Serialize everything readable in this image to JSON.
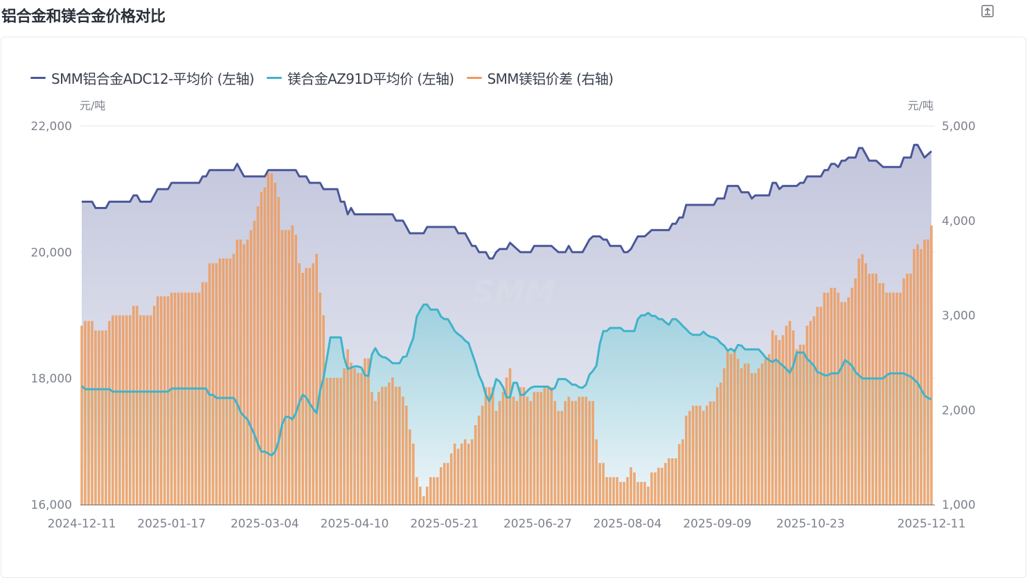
{
  "title": "铝合金和镁合金价格对比",
  "colors": {
    "adc12": "#4a5799",
    "az91d": "#3fb3c9",
    "spread": "#ef9a5a"
  },
  "legend": [
    {
      "label": "SMM铝合金ADC12-平均价 (左轴)",
      "color": "#4a5799"
    },
    {
      "label": "镁合金AZ91D平均价 (左轴)",
      "color": "#3fb3c9"
    },
    {
      "label": "SMM镁铝价差 (右轴)",
      "color": "#ef9a5a"
    }
  ],
  "chart_data": {
    "type": "bar+line+area",
    "title": "铝合金和镁合金价格对比",
    "watermark": "SMM",
    "y_left": {
      "unit": "元/吨",
      "range": [
        16000,
        22000
      ],
      "ticks": [
        "22,000",
        "20,000",
        "18,000",
        "16,000"
      ],
      "tick_values": [
        22000,
        20000,
        18000,
        16000
      ]
    },
    "y_right": {
      "unit": "元/吨",
      "range": [
        1000,
        5000
      ],
      "ticks": [
        "5,000",
        "4,000",
        "3,000",
        "2,000",
        "1,000"
      ],
      "tick_values": [
        5000,
        4000,
        3000,
        2000,
        1000
      ]
    },
    "grid": true,
    "legend_position": "top-left",
    "x_labels": [
      {
        "label": "2024-12-11",
        "index": 0
      },
      {
        "label": "2025-01-17",
        "index": 26
      },
      {
        "label": "2025-03-04",
        "index": 53
      },
      {
        "label": "2025-04-10",
        "index": 79
      },
      {
        "label": "2025-05-21",
        "index": 105
      },
      {
        "label": "2025-06-27",
        "index": 132
      },
      {
        "label": "2025-08-04",
        "index": 158
      },
      {
        "label": "2025-09-09",
        "index": 184
      },
      {
        "label": "2025-10-23",
        "index": 211
      },
      {
        "label": "2025-12-11",
        "index": 246
      }
    ],
    "series": [
      {
        "name": "SMM铝合金ADC12-平均价 (左轴)",
        "type": "area-line",
        "axis": "left",
        "values": [
          20800,
          20800,
          20800,
          20800,
          20700,
          20700,
          20700,
          20700,
          20800,
          20800,
          20800,
          20800,
          20800,
          20800,
          20800,
          20900,
          20900,
          20800,
          20800,
          20800,
          20800,
          20900,
          21000,
          21000,
          21000,
          21000,
          21100,
          21100,
          21100,
          21100,
          21100,
          21100,
          21100,
          21100,
          21100,
          21200,
          21200,
          21300,
          21300,
          21300,
          21300,
          21300,
          21300,
          21300,
          21300,
          21400,
          21300,
          21200,
          21200,
          21200,
          21200,
          21200,
          21200,
          21200,
          21300,
          21300,
          21300,
          21300,
          21300,
          21300,
          21300,
          21300,
          21300,
          21200,
          21200,
          21200,
          21100,
          21100,
          21100,
          21100,
          21000,
          21000,
          21000,
          21000,
          21000,
          20800,
          20800,
          20600,
          20700,
          20600,
          20600,
          20600,
          20600,
          20600,
          20600,
          20600,
          20600,
          20600,
          20600,
          20600,
          20600,
          20500,
          20500,
          20500,
          20400,
          20300,
          20300,
          20300,
          20300,
          20300,
          20400,
          20400,
          20400,
          20400,
          20400,
          20400,
          20400,
          20400,
          20400,
          20300,
          20300,
          20300,
          20200,
          20100,
          20100,
          20000,
          20000,
          20000,
          19900,
          19900,
          20000,
          20050,
          20050,
          20050,
          20150,
          20100,
          20050,
          20000,
          20000,
          20000,
          20000,
          20100,
          20100,
          20100,
          20100,
          20100,
          20100,
          20050,
          20000,
          20000,
          20000,
          20100,
          20000,
          20000,
          20000,
          20000,
          20100,
          20200,
          20250,
          20250,
          20250,
          20200,
          20200,
          20100,
          20100,
          20100,
          20100,
          20000,
          20000,
          20050,
          20150,
          20250,
          20250,
          20250,
          20300,
          20350,
          20350,
          20350,
          20350,
          20350,
          20350,
          20450,
          20450,
          20550,
          20550,
          20750,
          20750,
          20750,
          20750,
          20750,
          20750,
          20750,
          20750,
          20750,
          20850,
          20850,
          20850,
          21050,
          21050,
          21050,
          21050,
          20950,
          20950,
          20950,
          20850,
          20900,
          20900,
          20900,
          20900,
          20900,
          21100,
          21100,
          21000,
          21050,
          21050,
          21050,
          21050,
          21050,
          21100,
          21100,
          21200,
          21200,
          21200,
          21200,
          21200,
          21300,
          21300,
          21400,
          21400,
          21350,
          21450,
          21450,
          21500,
          21500,
          21500,
          21650,
          21650,
          21550,
          21450,
          21450,
          21450,
          21400,
          21350,
          21350,
          21350,
          21350,
          21350,
          21350,
          21500,
          21500,
          21500,
          21700,
          21700,
          21600,
          21500,
          21550,
          21600
        ]
      },
      {
        "name": "镁合金AZ91D平均价 (左轴)",
        "type": "area-line",
        "axis": "left",
        "values": [
          17880,
          17830,
          17830,
          17830,
          17830,
          17830,
          17830,
          17830,
          17830,
          17790,
          17790,
          17790,
          17790,
          17790,
          17790,
          17790,
          17790,
          17790,
          17790,
          17790,
          17790,
          17790,
          17790,
          17790,
          17790,
          17790,
          17840,
          17840,
          17840,
          17840,
          17840,
          17840,
          17840,
          17840,
          17840,
          17840,
          17840,
          17740,
          17740,
          17690,
          17690,
          17690,
          17690,
          17690,
          17690,
          17600,
          17470,
          17400,
          17350,
          17230,
          17110,
          16960,
          16840,
          16840,
          16810,
          16780,
          16840,
          17000,
          17270,
          17390,
          17390,
          17350,
          17450,
          17620,
          17740,
          17700,
          17600,
          17520,
          17450,
          17810,
          18000,
          18320,
          18650,
          18650,
          18650,
          18650,
          18320,
          18150,
          18170,
          18190,
          18190,
          18170,
          18050,
          18040,
          18380,
          18480,
          18380,
          18340,
          18330,
          18290,
          18240,
          18240,
          18240,
          18340,
          18350,
          18500,
          18640,
          18980,
          19080,
          19170,
          19170,
          19090,
          19090,
          19090,
          18980,
          18940,
          18940,
          18850,
          18750,
          18700,
          18660,
          18600,
          18560,
          18400,
          18240,
          18050,
          17930,
          17740,
          17640,
          17780,
          17990,
          17950,
          17860,
          17700,
          17700,
          17930,
          17930,
          17740,
          17740,
          17800,
          17850,
          17870,
          17870,
          17870,
          17870,
          17870,
          17820,
          17850,
          17990,
          17990,
          17990,
          17950,
          17900,
          17900,
          17860,
          17850,
          17900,
          18060,
          18120,
          18200,
          18550,
          18750,
          18750,
          18800,
          18800,
          18800,
          18800,
          18750,
          18750,
          18750,
          18750,
          18940,
          19000,
          19000,
          19040,
          18990,
          18990,
          18940,
          18940,
          18890,
          18850,
          18940,
          18940,
          18890,
          18830,
          18780,
          18720,
          18690,
          18690,
          18690,
          18740,
          18690,
          18660,
          18650,
          18620,
          18560,
          18520,
          18440,
          18470,
          18430,
          18530,
          18520,
          18460,
          18460,
          18460,
          18460,
          18460,
          18400,
          18330,
          18290,
          18260,
          18300,
          18250,
          18200,
          18150,
          18090,
          18200,
          18410,
          18410,
          18410,
          18310,
          18260,
          18200,
          18100,
          18080,
          18050,
          18050,
          18080,
          18080,
          18080,
          18180,
          18290,
          18250,
          18200,
          18100,
          18050,
          18000,
          18000,
          18000,
          18000,
          18000,
          18000,
          18000,
          18050,
          18080,
          18080,
          18080,
          18080,
          18080,
          18050,
          18030,
          17980,
          17930,
          17830,
          17730,
          17690,
          17670
        ]
      },
      {
        "name": "SMM镁铝价差 (右轴)",
        "type": "bar",
        "axis": "right",
        "values": [
          2890,
          2940,
          2940,
          2940,
          2840,
          2840,
          2840,
          2840,
          2940,
          3000,
          3000,
          3000,
          3000,
          3000,
          3000,
          3100,
          3100,
          3000,
          3000,
          3000,
          3000,
          3100,
          3200,
          3200,
          3200,
          3200,
          3240,
          3240,
          3240,
          3240,
          3240,
          3240,
          3240,
          3240,
          3240,
          3350,
          3350,
          3550,
          3550,
          3550,
          3600,
          3600,
          3600,
          3600,
          3650,
          3800,
          3800,
          3750,
          3800,
          3900,
          4000,
          4150,
          4300,
          4350,
          4500,
          4500,
          4400,
          4250,
          3900,
          3900,
          3900,
          3950,
          3850,
          3550,
          3450,
          3500,
          3500,
          3550,
          3650,
          3240,
          3000,
          2340,
          2340,
          2340,
          2340,
          2340,
          2440,
          2640,
          2500,
          2440,
          2390,
          2390,
          2545,
          2545,
          2190,
          2095,
          2190,
          2245,
          2245,
          2290,
          2345,
          2245,
          2245,
          2140,
          2045,
          1795,
          1645,
          1290,
          1190,
          1090,
          1190,
          1290,
          1290,
          1290,
          1395,
          1440,
          1440,
          1540,
          1645,
          1590,
          1645,
          1690,
          1645,
          1690,
          1840,
          1940,
          2045,
          2240,
          2240,
          2240,
          1990,
          2095,
          2190,
          2345,
          2440,
          2140,
          2095,
          2240,
          2240,
          2140,
          2095,
          2190,
          2190,
          2190,
          2240,
          2240,
          2240,
          2095,
          1990,
          1990,
          2095,
          2140,
          2095,
          2095,
          2140,
          2140,
          2140,
          2095,
          2095,
          1690,
          1440,
          1440,
          1290,
          1290,
          1290,
          1290,
          1240,
          1240,
          1290,
          1395,
          1340,
          1240,
          1240,
          1240,
          1190,
          1340,
          1340,
          1390,
          1390,
          1440,
          1490,
          1490,
          1490,
          1640,
          1690,
          1940,
          1990,
          2045,
          2045,
          2045,
          1990,
          2045,
          2090,
          2090,
          2240,
          2290,
          2440,
          2640,
          2590,
          2640,
          2540,
          2440,
          2490,
          2490,
          2390,
          2390,
          2440,
          2490,
          2540,
          2590,
          2840,
          2790,
          2740,
          2790,
          2890,
          2940,
          2840,
          2640,
          2690,
          2690,
          2890,
          2940,
          2990,
          3090,
          3090,
          3240,
          3240,
          3290,
          3290,
          3240,
          3140,
          3140,
          3190,
          3290,
          3390,
          3600,
          3645,
          3550,
          3440,
          3440,
          3440,
          3340,
          3340,
          3240,
          3240,
          3240,
          3240,
          3240,
          3390,
          3440,
          3440,
          3700,
          3750,
          3700,
          3800,
          3800,
          3950
        ]
      }
    ]
  }
}
